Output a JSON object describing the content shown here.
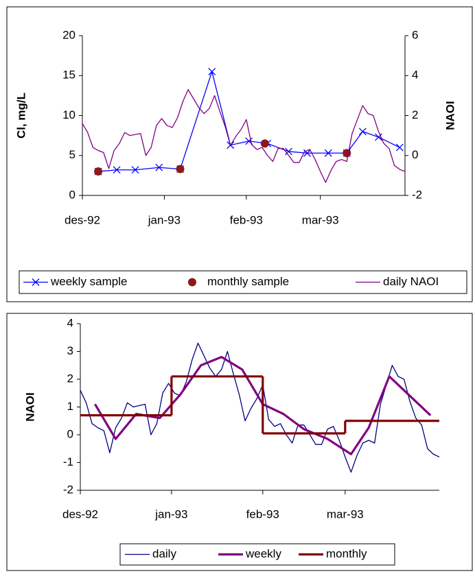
{
  "chart_data": [
    {
      "type": "line",
      "ylabel": "Cl, mg/L",
      "y2label": "NAOI",
      "xlim": [
        0,
        122
      ],
      "xticks": [
        {
          "value": 0,
          "label": "des-92"
        },
        {
          "value": 31,
          "label": "jan-93"
        },
        {
          "value": 62,
          "label": "feb-93"
        },
        {
          "value": 90,
          "label": "mar-93"
        }
      ],
      "ylim": [
        0,
        20
      ],
      "yticks": [
        0,
        5,
        10,
        15,
        20
      ],
      "y2lim": [
        -2,
        6
      ],
      "y2ticks": [
        -2,
        0,
        2,
        4,
        6
      ],
      "grid": false,
      "legend": "bottom",
      "series": [
        {
          "name": "weekly sample",
          "color": "#0000ff",
          "marker": "x",
          "line": true,
          "width": 1.3,
          "x": [
            6,
            13,
            20,
            29,
            37,
            49,
            56,
            63,
            70,
            78,
            85,
            93,
            100,
            106,
            112,
            120
          ],
          "values": [
            3.0,
            3.2,
            3.2,
            3.5,
            3.3,
            15.5,
            6.3,
            6.8,
            6.5,
            5.5,
            5.3,
            5.3,
            5.3,
            8.0,
            7.3,
            6.0
          ]
        },
        {
          "name": "monthly sample",
          "color": "#8b1a1a",
          "marker": "circle",
          "line": false,
          "x": [
            6,
            37,
            69,
            100
          ],
          "values": [
            3.0,
            3.3,
            6.5,
            5.3
          ]
        },
        {
          "name": "daily NAOI",
          "color": "#800080",
          "marker": "none",
          "line": true,
          "width": 1.3,
          "axis": "y2",
          "x": [
            0,
            2,
            4,
            6,
            8,
            10,
            12,
            14,
            16,
            18,
            20,
            22,
            24,
            26,
            28,
            30,
            32,
            34,
            36,
            38,
            40,
            42,
            44,
            46,
            48,
            50,
            52,
            54,
            56,
            58,
            60,
            62,
            64,
            66,
            68,
            70,
            72,
            74,
            76,
            78,
            80,
            82,
            84,
            86,
            88,
            90,
            92,
            94,
            96,
            98,
            100,
            102,
            104,
            106,
            108,
            110,
            112,
            114,
            116,
            118,
            120,
            122
          ],
          "values": [
            1.6,
            1.15,
            0.4,
            0.25,
            0.15,
            -0.65,
            0.25,
            0.6,
            1.15,
            1.0,
            1.05,
            1.1,
            0.0,
            0.4,
            1.5,
            1.85,
            1.5,
            1.4,
            1.9,
            2.7,
            3.3,
            2.85,
            2.4,
            2.1,
            2.35,
            3.0,
            2.2,
            1.45,
            0.5,
            0.95,
            1.3,
            1.8,
            0.55,
            0.3,
            0.4,
            0.0,
            -0.3,
            0.35,
            0.35,
            0.0,
            -0.35,
            -0.35,
            0.2,
            0.3,
            -0.2,
            -0.8,
            -1.35,
            -0.75,
            -0.3,
            -0.2,
            -0.3,
            1.1,
            1.8,
            2.5,
            2.1,
            2.0,
            1.2,
            0.6,
            0.35,
            -0.5,
            -0.7,
            -0.8
          ]
        }
      ]
    },
    {
      "type": "line",
      "ylabel": "NAOI",
      "xlim": [
        0,
        122
      ],
      "xticks": [
        {
          "value": 0,
          "label": "des-92"
        },
        {
          "value": 31,
          "label": "jan-93"
        },
        {
          "value": 62,
          "label": "feb-93"
        },
        {
          "value": 90,
          "label": "mar-93"
        }
      ],
      "ylim": [
        -2,
        4
      ],
      "yticks": [
        -2,
        -1,
        0,
        1,
        2,
        3,
        4
      ],
      "grid": false,
      "legend": "bottom",
      "series": [
        {
          "name": "daily",
          "color": "#000080",
          "marker": "none",
          "line": true,
          "width": 1.3,
          "x": [
            0,
            2,
            4,
            6,
            8,
            10,
            12,
            14,
            16,
            18,
            20,
            22,
            24,
            26,
            28,
            30,
            32,
            34,
            36,
            38,
            40,
            42,
            44,
            46,
            48,
            50,
            52,
            54,
            56,
            58,
            60,
            62,
            64,
            66,
            68,
            70,
            72,
            74,
            76,
            78,
            80,
            82,
            84,
            86,
            88,
            90,
            92,
            94,
            96,
            98,
            100,
            102,
            104,
            106,
            108,
            110,
            112,
            114,
            116,
            118,
            120,
            122
          ],
          "values": [
            1.6,
            1.15,
            0.4,
            0.25,
            0.15,
            -0.65,
            0.25,
            0.6,
            1.15,
            1.0,
            1.05,
            1.1,
            0.0,
            0.4,
            1.5,
            1.85,
            1.5,
            1.4,
            1.9,
            2.7,
            3.3,
            2.85,
            2.4,
            2.1,
            2.35,
            3.0,
            2.2,
            1.45,
            0.5,
            0.95,
            1.3,
            1.8,
            0.55,
            0.3,
            0.4,
            0.0,
            -0.3,
            0.35,
            0.35,
            0.0,
            -0.35,
            -0.35,
            0.2,
            0.3,
            -0.2,
            -0.8,
            -1.35,
            -0.75,
            -0.3,
            -0.2,
            -0.3,
            1.1,
            1.8,
            2.5,
            2.1,
            2.0,
            1.2,
            0.6,
            0.35,
            -0.5,
            -0.7,
            -0.8
          ]
        },
        {
          "name": "weekly",
          "color": "#800080",
          "marker": "none",
          "line": true,
          "width": 3.2,
          "x": [
            5,
            12,
            19,
            27,
            34,
            41,
            48,
            55,
            62,
            69,
            76,
            84,
            92,
            98,
            105,
            119
          ],
          "values": [
            1.1,
            -0.15,
            0.75,
            0.6,
            1.45,
            2.5,
            2.8,
            2.35,
            1.1,
            0.75,
            0.2,
            -0.15,
            -0.7,
            0.25,
            2.1,
            0.7
          ]
        },
        {
          "name": "monthly",
          "color": "#800000",
          "marker": "none",
          "line": true,
          "step": true,
          "width": 3.2,
          "x": [
            0,
            31,
            62,
            90
          ],
          "values": [
            0.7,
            2.1,
            0.05,
            0.5
          ]
        }
      ]
    }
  ]
}
